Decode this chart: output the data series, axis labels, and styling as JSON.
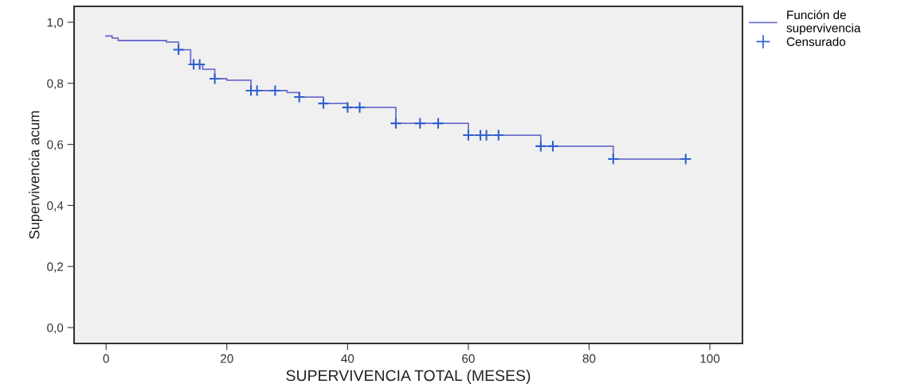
{
  "chart_data": {
    "type": "step",
    "xlabel": "SUPERVIVENCIA TOTAL (MESES)",
    "ylabel": "Supervivencia acum",
    "xlim": [
      -5.3,
      105.4
    ],
    "xticks": [
      0,
      20,
      40,
      60,
      80,
      100
    ],
    "ylim": [
      -0.052,
      1.052
    ],
    "yticks": [
      {
        "value": 0,
        "label": "0,0"
      },
      {
        "value": 0.2,
        "label": "0,2"
      },
      {
        "value": 0.4,
        "label": "0,4"
      },
      {
        "value": 0.6,
        "label": "0,6"
      },
      {
        "value": 0.8,
        "label": "0,8"
      },
      {
        "value": 1.0,
        "label": "1,0"
      }
    ],
    "grid": false,
    "legend": "top right",
    "series": [
      {
        "name": "Función de supervivencia",
        "color": "#6f6fcc",
        "line_style": "solid",
        "marker": "none",
        "x": [
          0,
          1,
          2,
          10,
          12,
          14,
          16,
          18,
          20,
          24,
          30,
          32,
          36,
          40,
          48,
          60,
          72,
          84,
          96
        ],
        "values": [
          0.955,
          0.948,
          0.94,
          0.935,
          0.91,
          0.862,
          0.846,
          0.815,
          0.81,
          0.776,
          0.77,
          0.755,
          0.734,
          0.721,
          0.669,
          0.63,
          0.594,
          0.552,
          0.552
        ]
      },
      {
        "name": "Censurado",
        "type": "scatter",
        "color": "#3060d0",
        "marker": "cross",
        "x": [
          12,
          14.5,
          15.5,
          18,
          24,
          25,
          28,
          32,
          36,
          40,
          42,
          48,
          52,
          55,
          60,
          62,
          63,
          65,
          72,
          74,
          84,
          96
        ],
        "values": [
          0.91,
          0.862,
          0.862,
          0.815,
          0.776,
          0.776,
          0.776,
          0.755,
          0.734,
          0.721,
          0.721,
          0.669,
          0.669,
          0.669,
          0.63,
          0.63,
          0.63,
          0.63,
          0.594,
          0.594,
          0.552,
          0.552
        ]
      }
    ]
  }
}
